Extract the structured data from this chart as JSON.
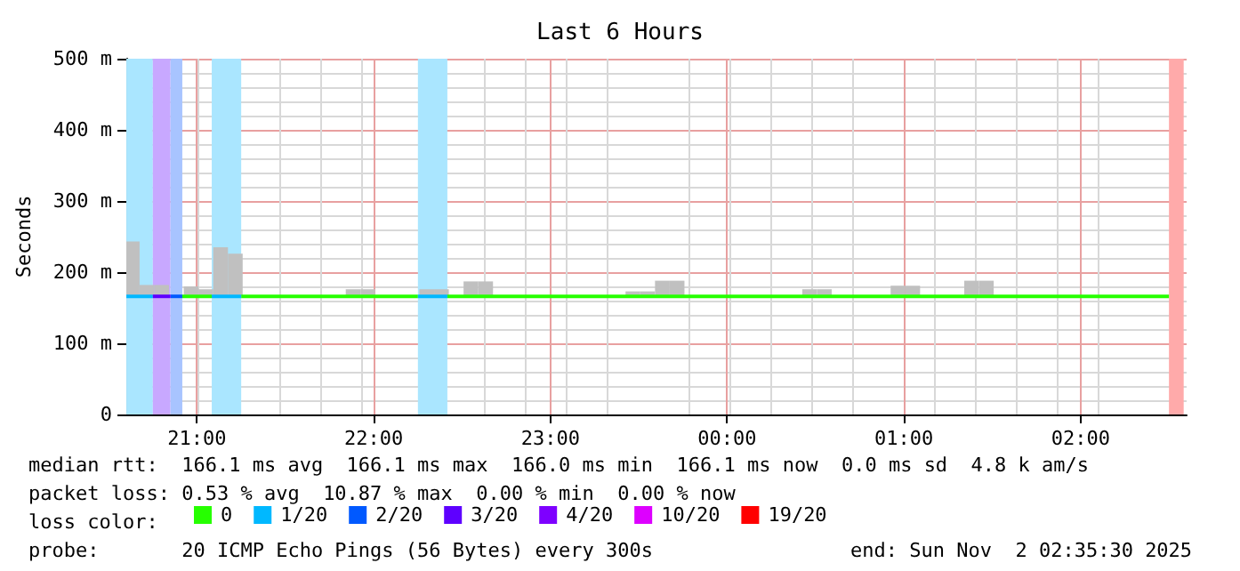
{
  "chart_data": {
    "type": "line",
    "title": "Last 6 Hours",
    "ylabel": "Seconds",
    "xlim": [
      "2025-11-01T20:36",
      "2025-11-02T02:36"
    ],
    "xticks": [
      {
        "value": "2025-11-01T21:00",
        "label": "21:00"
      },
      {
        "value": "2025-11-01T22:00",
        "label": "22:00"
      },
      {
        "value": "2025-11-01T23:00",
        "label": "23:00"
      },
      {
        "value": "2025-11-02T00:00",
        "label": "00:00"
      },
      {
        "value": "2025-11-02T01:00",
        "label": "01:00"
      },
      {
        "value": "2025-11-02T02:00",
        "label": "02:00"
      }
    ],
    "ylim": [
      0,
      500
    ],
    "yticks": [
      0,
      {
        "value": 100,
        "label": "100 m"
      },
      {
        "value": 200,
        "label": "200 m"
      },
      {
        "value": 300,
        "label": "300 m"
      },
      {
        "value": 400,
        "label": "400 m"
      },
      {
        "value": 500,
        "label": "500 m"
      }
    ],
    "grid": true,
    "legend": "bottom",
    "marker": "none",
    "line_style": "solid",
    "bands": [
      {
        "axis": "x",
        "from": "2025-11-01T20:36",
        "to": "2025-11-01T20:45",
        "color": "#aae6ff"
      },
      {
        "axis": "x",
        "from": "2025-11-01T20:45",
        "to": "2025-11-01T20:51",
        "color": "#c8a8ff"
      },
      {
        "axis": "x",
        "from": "2025-11-01T20:51",
        "to": "2025-11-01T20:55",
        "color": "#a8c4ff"
      },
      {
        "axis": "x",
        "from": "2025-11-01T21:05",
        "to": "2025-11-01T21:15",
        "color": "#aae6ff"
      },
      {
        "axis": "x",
        "from": "2025-11-01T22:15",
        "to": "2025-11-01T22:25",
        "color": "#aae6ff"
      },
      {
        "axis": "x",
        "from": "2025-11-02T02:30",
        "to": "2025-11-02T02:35",
        "color": "#ffaaaa"
      }
    ],
    "series": [
      {
        "type": "bar",
        "color": "#c0c0c0",
        "x": [
          "2025-11-01T20:38",
          "2025-11-01T20:43",
          "2025-11-01T20:48",
          "2025-11-01T20:58",
          "2025-11-01T21:03",
          "2025-11-01T21:08",
          "2025-11-01T21:13",
          "2025-11-01T21:53",
          "2025-11-01T21:58",
          "2025-11-01T22:18",
          "2025-11-01T22:23",
          "2025-11-01T22:33",
          "2025-11-01T22:38",
          "2025-11-01T23:28",
          "2025-11-01T23:33",
          "2025-11-01T23:38",
          "2025-11-01T23:43",
          "2025-11-02T00:28",
          "2025-11-02T00:33",
          "2025-11-02T00:58",
          "2025-11-02T01:03",
          "2025-11-02T01:23",
          "2025-11-02T01:28"
        ],
        "base": [
          166,
          166,
          166,
          166,
          166,
          166,
          166,
          166,
          166,
          166,
          166,
          166,
          166,
          166,
          166,
          166,
          166,
          166,
          166,
          166,
          166,
          166,
          166
        ],
        "values": [
          77,
          16,
          16,
          14,
          10,
          69,
          60,
          10,
          10,
          10,
          10,
          21,
          21,
          7,
          7,
          22,
          22,
          10,
          10,
          15,
          15,
          22,
          22
        ]
      },
      {
        "name": "0",
        "color": "#26ff00",
        "x": [
          "2025-11-01T20:55",
          "2025-11-01T21:05",
          "2025-11-01T21:10",
          "2025-11-01T21:15",
          "2025-11-01T22:15",
          "2025-11-01T22:20",
          "2025-11-01T22:25",
          "2025-11-02T02:30"
        ],
        "values": [
          166,
          166,
          null,
          166,
          166,
          null,
          166,
          166
        ]
      },
      {
        "name": "1/20",
        "color": "#00b8ff",
        "x": [
          "2025-11-01T20:36",
          "2025-11-01T20:45",
          "2025-11-01T20:54",
          "2025-11-01T21:05",
          "2025-11-01T21:15",
          "2025-11-01T22:00",
          "2025-11-01T22:15",
          "2025-11-01T22:25"
        ],
        "values": [
          166,
          166,
          null,
          166,
          166,
          null,
          166,
          166
        ]
      },
      {
        "name": "2/20",
        "color": "#0059ff",
        "x": [
          "2025-11-01T20:51",
          "2025-11-01T20:55"
        ],
        "values": [
          166,
          166
        ]
      },
      {
        "name": "3/20",
        "color": "#5e00ff",
        "x": [
          "2025-11-01T20:45",
          "2025-11-01T20:51"
        ],
        "values": [
          166,
          166
        ]
      },
      {
        "name": "4/20",
        "color": "#7e00ff"
      },
      {
        "name": "10/20",
        "color": "#dd00ff"
      },
      {
        "name": "19/20",
        "color": "#ff0000"
      }
    ],
    "annotations": [
      "median rtt:  166.1 ms avg  166.1 ms max  166.0 ms min  166.1 ms now  0.0 ms sd  4.8 k am/s",
      "packet loss: 0.53 % avg  10.87 % max  0.00 % min  0.00 % now",
      "loss color:",
      "probe:       20 ICMP Echo Pings (56 Bytes) every 300s",
      "end: Sun Nov  2 02:35:30 2025"
    ]
  }
}
